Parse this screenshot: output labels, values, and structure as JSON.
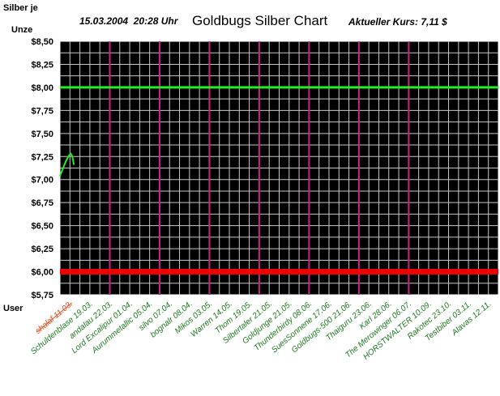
{
  "chart_data": {
    "type": "line",
    "title": "Goldbugs Silber Chart",
    "subtitle_datetime": "15.03.2004  20:28 Uhr",
    "price_text": "Aktueller Kurs: 7,11 $",
    "ylabel_line1": "Silber je",
    "ylabel_line2": "Unze",
    "xlabel": "User",
    "ylim": [
      5.75,
      8.5
    ],
    "y_ticks": [
      {
        "value": 8.5,
        "label": "$8,50"
      },
      {
        "value": 8.25,
        "label": "$8,25"
      },
      {
        "value": 8.0,
        "label": "$8,00"
      },
      {
        "value": 7.75,
        "label": "$7,75"
      },
      {
        "value": 7.5,
        "label": "$7,50"
      },
      {
        "value": 7.25,
        "label": "$7,25"
      },
      {
        "value": 7.0,
        "label": "$7,00"
      },
      {
        "value": 6.75,
        "label": "$6,75"
      },
      {
        "value": 6.5,
        "label": "$6,50"
      },
      {
        "value": 6.25,
        "label": "$6,25"
      },
      {
        "value": 6.0,
        "label": "$6,00"
      },
      {
        "value": 5.75,
        "label": "$5,75"
      }
    ],
    "x_categories": [
      {
        "label": "shalaf 11.03.",
        "struck": true
      },
      {
        "label": "Schuldenblase 19.03.",
        "struck": false
      },
      {
        "label": "andalau 22.03.",
        "struck": false
      },
      {
        "label": "Lord Excalipur 01.04.",
        "struck": false
      },
      {
        "label": "Aurummetallic 05.04.",
        "struck": false
      },
      {
        "label": "silvo 07.04.",
        "struck": false
      },
      {
        "label": "bognalr 08.04.",
        "struck": false
      },
      {
        "label": "Mikos 03.05.",
        "struck": false
      },
      {
        "label": "Warren 14.05.",
        "struck": false
      },
      {
        "label": "Thom 19.05.",
        "struck": false
      },
      {
        "label": "Silbertaler 21.05.",
        "struck": false
      },
      {
        "label": "Goldjunge 21.05.",
        "struck": false
      },
      {
        "label": "Thunderbirdy 08.06.",
        "struck": false
      },
      {
        "label": "SuesSonnene 17.06.",
        "struck": false
      },
      {
        "label": "Goldbugs-500 21.06.",
        "struck": false
      },
      {
        "label": "Thaiguru 23.06.",
        "struck": false
      },
      {
        "label": "Karl 28.06.",
        "struck": false
      },
      {
        "label": "The Merowinger 06.07.",
        "struck": false
      },
      {
        "label": "HORSTWALTER 10.09.",
        "struck": false
      },
      {
        "label": "Rakotec 23.10.",
        "struck": false
      },
      {
        "label": "Testbiber 03.11.",
        "struck": false
      },
      {
        "label": "Alavas 12.11.",
        "struck": false
      }
    ],
    "reference_lines": [
      {
        "name": "",
        "y": 8.0,
        "color": "#22ee22"
      },
      {
        "name": "",
        "y": 6.0,
        "color": "#ee0000"
      }
    ],
    "series": [
      {
        "name": "",
        "color": "#22ee22",
        "points": [
          {
            "x": 0.0,
            "y": 7.04
          },
          {
            "x": 0.15,
            "y": 7.12
          },
          {
            "x": 0.3,
            "y": 7.2
          },
          {
            "x": 0.45,
            "y": 7.26
          },
          {
            "x": 0.55,
            "y": 7.28
          },
          {
            "x": 0.62,
            "y": 7.25
          },
          {
            "x": 0.7,
            "y": 7.16
          }
        ]
      }
    ],
    "magenta_divider_positions": [
      2.5,
      5.0,
      7.5,
      10.0,
      12.5,
      15.0,
      17.5
    ],
    "colors": {
      "background": "#000000",
      "grid": "#c8c8c8",
      "divider": "#cc2288",
      "category_label": "#1a7a1a",
      "struck_label": "#e24a1a",
      "axis_text": "#000000",
      "border": "#ffffff"
    },
    "grid": true
  }
}
